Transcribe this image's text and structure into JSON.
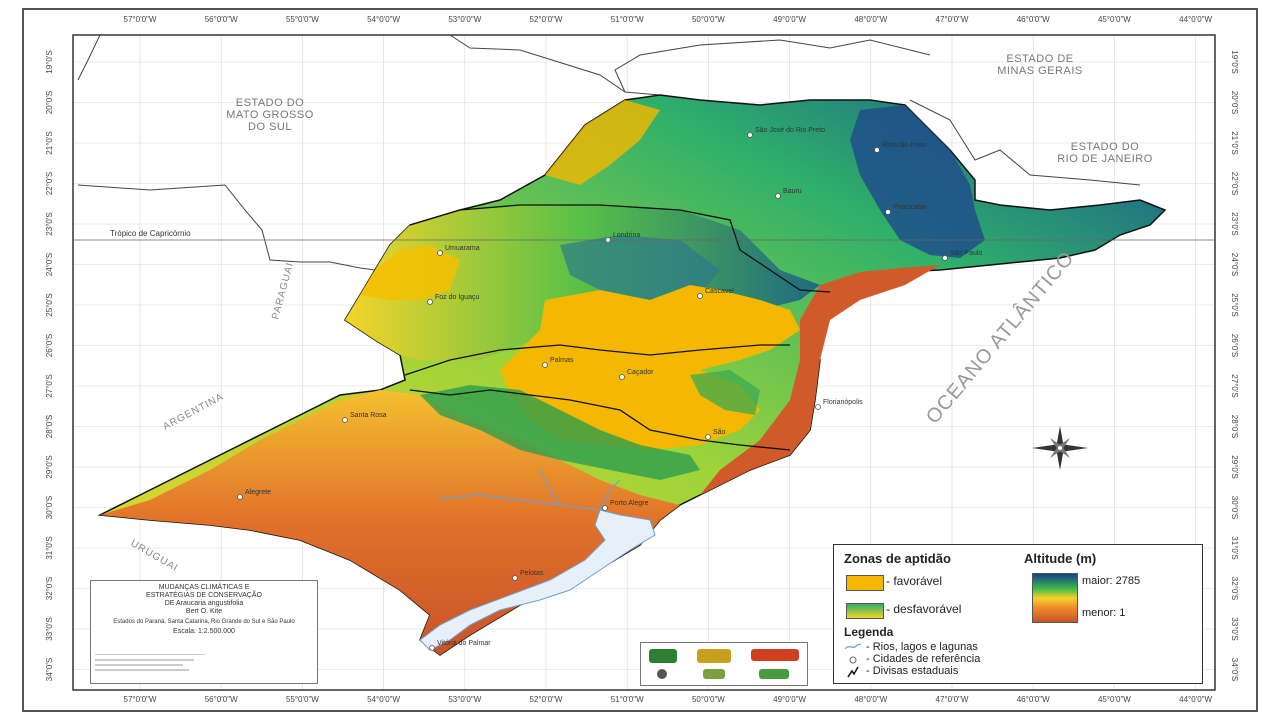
{
  "map": {
    "longitude_labels": [
      "57°0'0\"W",
      "56°0'0\"W",
      "55°0'0\"W",
      "54°0'0\"W",
      "53°0'0\"W",
      "52°0'0\"W",
      "51°0'0\"W",
      "50°0'0\"W",
      "49°0'0\"W",
      "48°0'0\"W",
      "47°0'0\"W",
      "46°0'0\"W",
      "45°0'0\"W",
      "44°0'0\"W"
    ],
    "latitude_labels": [
      "19°0'S",
      "20°0'S",
      "21°0'S",
      "22°0'S",
      "23°0'S",
      "24°0'S",
      "25°0'S",
      "26°0'S",
      "27°0'S",
      "28°0'S",
      "29°0'S",
      "30°0'S",
      "31°0'S",
      "32°0'S",
      "33°0'S",
      "34°0'S"
    ],
    "states": {
      "mato_grosso": [
        "ESTADO DO",
        "MATO GROSSO",
        "DO SUL"
      ],
      "minas_gerais": [
        "ESTADO DE",
        "MINAS GERAIS"
      ],
      "rio": [
        "ESTADO DO",
        "RIO DE JANEIRO"
      ]
    },
    "countries": {
      "paraguai": "PARAGUAI",
      "argentina": "ARGENTINA",
      "uruguai": "URUGUAI"
    },
    "ocean": "OCEANO ATLÂNTICO",
    "tropic": "Trópico de Capricórnio",
    "cities": [
      "São José do Rio Preto",
      "Ribeirão Preto",
      "Bauru",
      "Piracicaba",
      "Londrina",
      "Umuarama",
      "São Paulo",
      "Cascavel",
      "Foz do Iguaçu",
      "Palmas",
      "Caçador",
      "Florianópolis",
      "Santa Rosa",
      "Alegrete",
      "Porto Alegre",
      "Pelotas",
      "Vitória do Palmar",
      "São"
    ],
    "colors": {
      "favorable": "#f5b800",
      "low": "#c9532a",
      "mid": "#f4d42a",
      "green": "#3cb84a",
      "high": "#1a3f8a",
      "water": "#e6f0fa"
    }
  },
  "legend": {
    "zonas_title": "Zonas de aptidão",
    "altitude_title": "Altitude (m)",
    "favoravel": "- favorável",
    "desfavoravel": "- desfavorável",
    "maior": "maior: 2785",
    "menor": "menor: 1",
    "legenda_title": "Legenda",
    "items": [
      "- Rios, lagos e lagunas",
      "- Cidades de referência",
      "- Divisas estaduais"
    ]
  },
  "titlebox": {
    "line1": "MUDANÇAS CLIMÁTICAS E",
    "line2": "ESTRATÉGIAS DE CONSERVAÇÃO",
    "line3": "DE Araucaria angustifolia",
    "author": "Bert O. Kite",
    "region": "Estados do Paraná, Santa Catarina, Rio Grande do Sul e São Paulo",
    "scale": "Escala: 1:2.500.000"
  }
}
